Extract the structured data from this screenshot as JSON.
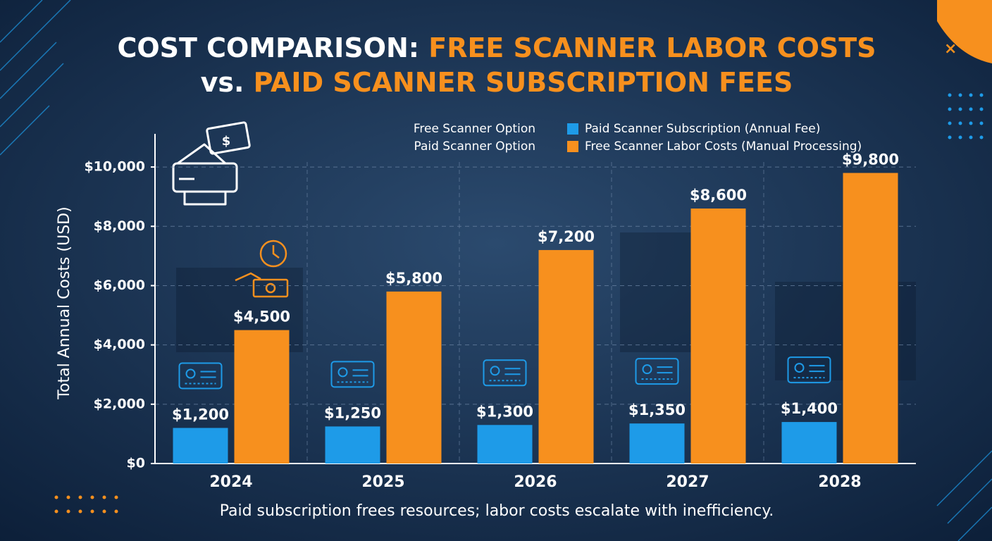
{
  "chart_data": {
    "type": "bar",
    "title": [
      "COST COMPARISON: ",
      "FREE SCANNER LABOR COSTS",
      "vs. ",
      "PAID SCANNER SUBSCRIPTION FEES"
    ],
    "legend_group_labels": [
      "Free Scanner Option",
      "Paid Scanner Option"
    ],
    "y_label": "Total Annual Costs (USD)",
    "caption": "Paid subscription frees resources; labor costs escalate with inefficiency.",
    "categories": [
      "2024",
      "2025",
      "2026",
      "2027",
      "2028"
    ],
    "series": [
      {
        "name": "Paid Scanner Subscription (Annual Fee)",
        "color": "#1e9be8",
        "values": [
          1200,
          1250,
          1300,
          1350,
          1400
        ],
        "value_labels": [
          "$1,200",
          "$1,250",
          "$1,300",
          "$1,350",
          "$1,400"
        ]
      },
      {
        "name": "Free Scanner Labor Costs (Manual Processing)",
        "color": "#f7901e",
        "values": [
          4500,
          5800,
          7200,
          8600,
          9800
        ],
        "value_labels": [
          "$4,500",
          "$5,800",
          "$7,200",
          "$8,600",
          "$9,800"
        ]
      }
    ],
    "ylim": [
      0,
      11000
    ],
    "yticks": [
      {
        "value": 0,
        "label": "$0"
      },
      {
        "value": 2000,
        "label": "$2,000"
      },
      {
        "value": 4000,
        "label": "$4,000"
      },
      {
        "value": 6000,
        "label": "$6,000"
      },
      {
        "value": 8000,
        "label": "$8,000"
      },
      {
        "value": 10000,
        "label": "$10,000"
      }
    ],
    "grid": true
  }
}
